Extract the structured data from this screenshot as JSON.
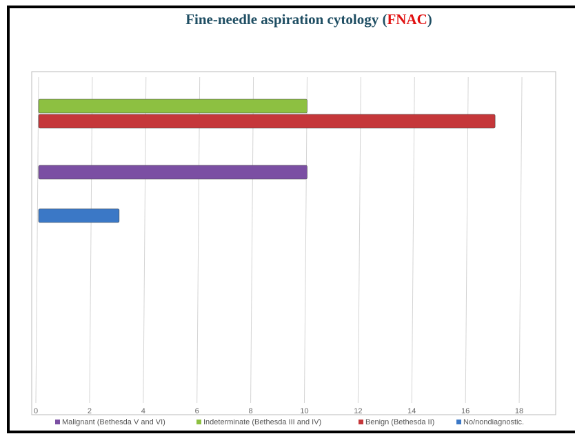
{
  "chart_data": {
    "type": "bar",
    "orientation": "horizontal",
    "title_parts": [
      "Fine-needle aspiration cytology (",
      "FNAC",
      ")"
    ],
    "categories": [
      null,
      null,
      null
    ],
    "series": [
      {
        "name": "Malignant (Bethesda V and VI)",
        "color": "#7b4fa3",
        "values": [
          null,
          10,
          null
        ]
      },
      {
        "name": "Indeterminate (Bethesda III and IV)",
        "color": "#8dc041",
        "values": [
          10,
          null,
          null
        ]
      },
      {
        "name": "Benign (Bethesda II)",
        "color": "#c5373a",
        "values": [
          17,
          null,
          null
        ]
      },
      {
        "name": "No/nondiagnostic.",
        "color": "#3b78c6",
        "values": [
          null,
          null,
          3
        ]
      }
    ],
    "xlim": [
      0,
      19
    ],
    "xticks": [
      0,
      2,
      4,
      6,
      8,
      10,
      12,
      14,
      16,
      18
    ],
    "grid": true,
    "legend": "bottom"
  }
}
